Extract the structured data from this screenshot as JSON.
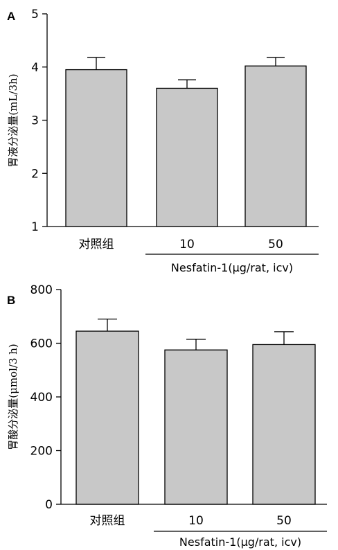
{
  "chart_data": [
    {
      "type": "bar",
      "panel": "A",
      "ylabel": "胃液分泌量(mL/3h)",
      "xlabel": "",
      "categories": [
        "对照组",
        "10",
        "50"
      ],
      "group_label": "Nesfatin-1(μg/rat, icv)",
      "values": [
        3.95,
        3.6,
        4.02
      ],
      "errors": [
        0.23,
        0.16,
        0.16
      ],
      "ylim": [
        1,
        5
      ],
      "yticks": [
        1,
        2,
        3,
        4,
        5
      ],
      "bar_color": "#c8c8c8",
      "grid": false
    },
    {
      "type": "bar",
      "panel": "B",
      "ylabel": "胃酸分泌量(μmol/3 h)",
      "xlabel": "",
      "categories": [
        "对照组",
        "10",
        "50"
      ],
      "group_label": "Nesfatin-1(μg/rat, icv)",
      "values": [
        645,
        575,
        595
      ],
      "errors": [
        45,
        40,
        48
      ],
      "ylim": [
        0,
        800
      ],
      "yticks": [
        0,
        200,
        400,
        600,
        800
      ],
      "bar_color": "#c8c8c8",
      "grid": false
    }
  ]
}
